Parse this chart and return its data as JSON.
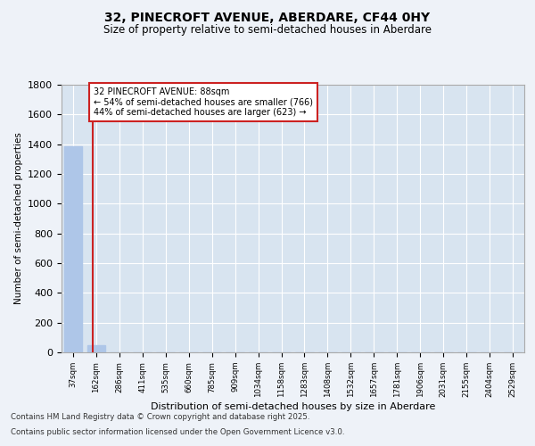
{
  "title_line1": "32, PINECROFT AVENUE, ABERDARE, CF44 0HY",
  "title_line2": "Size of property relative to semi-detached houses in Aberdare",
  "xlabel": "Distribution of semi-detached houses by size in Aberdare",
  "ylabel": "Number of semi-detached properties",
  "categories": [
    "37sqm",
    "162sqm",
    "286sqm",
    "411sqm",
    "535sqm",
    "660sqm",
    "785sqm",
    "909sqm",
    "1034sqm",
    "1158sqm",
    "1283sqm",
    "1408sqm",
    "1532sqm",
    "1657sqm",
    "1781sqm",
    "1906sqm",
    "2031sqm",
    "2155sqm",
    "2404sqm",
    "2529sqm"
  ],
  "values": [
    1389,
    50,
    0,
    0,
    0,
    0,
    0,
    0,
    0,
    0,
    0,
    0,
    0,
    0,
    0,
    0,
    0,
    0,
    0,
    0
  ],
  "bar_color": "#aec6e8",
  "highlight_color": "#cc2222",
  "property_line_x": 0.83,
  "annotation_text_line1": "32 PINECROFT AVENUE: 88sqm",
  "annotation_text_line2": "← 54% of semi-detached houses are smaller (766)",
  "annotation_text_line3": "44% of semi-detached houses are larger (623) →",
  "ylim": [
    0,
    1800
  ],
  "yticks": [
    0,
    200,
    400,
    600,
    800,
    1000,
    1200,
    1400,
    1600,
    1800
  ],
  "footer_line1": "Contains HM Land Registry data © Crown copyright and database right 2025.",
  "footer_line2": "Contains public sector information licensed under the Open Government Licence v3.0.",
  "background_color": "#eef2f8",
  "plot_background_color": "#d8e4f0"
}
